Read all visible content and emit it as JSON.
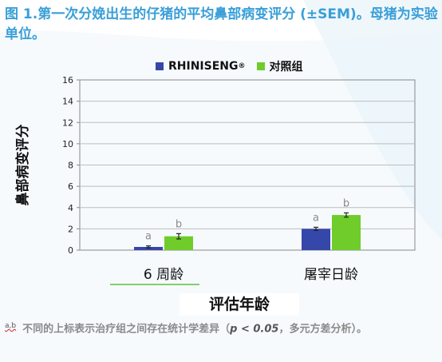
{
  "caption": {
    "lead": "图 1.",
    "text": "第一次分娩出生的仔猪的平均鼻部病变评分 (±SEM)。母猪为实验单位。"
  },
  "footnote": {
    "marker": "a,b",
    "text_before": "不同的上标表示治疗组之间存在统计学差异（",
    "pvalue": "p < 0.05",
    "text_after": "，多元方差分析）。"
  },
  "colors": {
    "rhiniseng": "#3547a8",
    "control": "#6fcc2a",
    "caption": "#3a9fd8"
  },
  "chart_data": {
    "type": "bar",
    "title": "",
    "xlabel": "评估年龄",
    "ylabel": "鼻部病变评分",
    "ylim": [
      0,
      16
    ],
    "yticks": [
      "0",
      "2",
      "4",
      "6",
      "8",
      "10",
      "12",
      "14",
      "16"
    ],
    "categories": [
      "6 周龄",
      "屠宰日龄"
    ],
    "series": [
      {
        "name": "RHINISENG",
        "name_sup": "®",
        "values": [
          0.3,
          2.0
        ],
        "errors": [
          0.1,
          0.15
        ],
        "labels": [
          "a",
          "a"
        ]
      },
      {
        "name": "对照组",
        "values": [
          1.3,
          3.3
        ],
        "errors": [
          0.25,
          0.2
        ],
        "labels": [
          "b",
          "b"
        ]
      }
    ],
    "legend_position": "top",
    "grid": true
  }
}
